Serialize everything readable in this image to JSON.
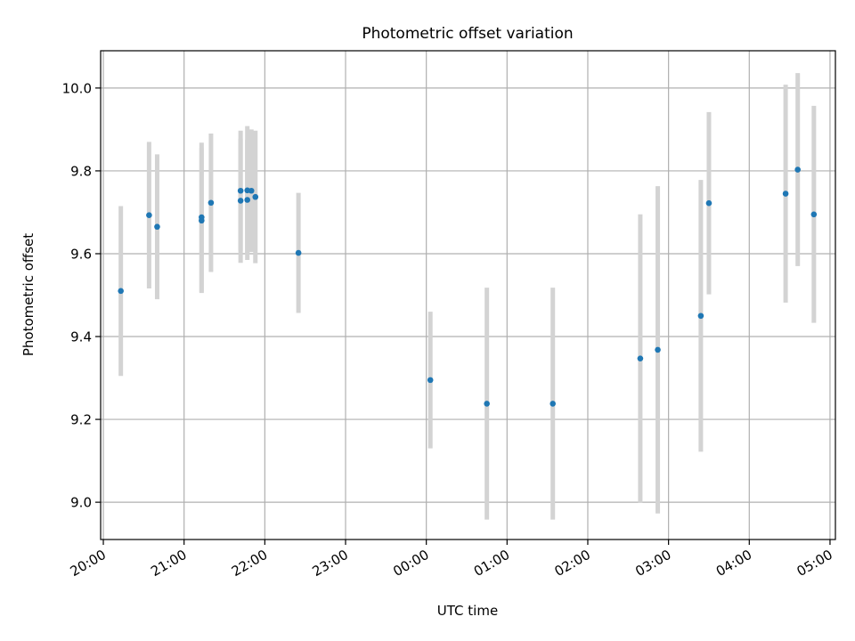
{
  "chart_data": {
    "type": "scatter",
    "title": "Photometric offset variation",
    "xlabel": "UTC time",
    "ylabel": "Photometric offset",
    "x_ticks": [
      "20:00",
      "21:00",
      "22:00",
      "23:00",
      "00:00",
      "01:00",
      "02:00",
      "03:00",
      "04:00",
      "05:00"
    ],
    "y_ticks": [
      "9.0",
      "9.2",
      "9.4",
      "9.6",
      "9.8",
      "10.0"
    ],
    "xlim": [
      "19:58",
      "05:04"
    ],
    "ylim": [
      8.91,
      10.09
    ],
    "grid": true,
    "colors": {
      "point": "#1f77b4",
      "errorbar": "#d3d3d3",
      "grid": "#b0b0b0"
    },
    "series": [
      {
        "points": [
          {
            "x": "20:13",
            "y": 9.51,
            "yerr": 0.205
          },
          {
            "x": "20:34",
            "y": 9.693,
            "yerr": 0.177
          },
          {
            "x": "20:40",
            "y": 9.665,
            "yerr": 0.175
          },
          {
            "x": "21:13",
            "y": 9.688,
            "yerr": 0.18
          },
          {
            "x": "21:13",
            "y": 9.68,
            "yerr": 0.175
          },
          {
            "x": "21:20",
            "y": 9.723,
            "yerr": 0.167
          },
          {
            "x": "21:42",
            "y": 9.752,
            "yerr": 0.145
          },
          {
            "x": "21:42",
            "y": 9.728,
            "yerr": 0.15
          },
          {
            "x": "21:47",
            "y": 9.753,
            "yerr": 0.155
          },
          {
            "x": "21:47",
            "y": 9.73,
            "yerr": 0.145
          },
          {
            "x": "21:50",
            "y": 9.752,
            "yerr": 0.148
          },
          {
            "x": "21:53",
            "y": 9.737,
            "yerr": 0.16
          },
          {
            "x": "22:25",
            "y": 9.602,
            "yerr": 0.145
          },
          {
            "x": "00:03",
            "y": 9.295,
            "yerr": 0.165
          },
          {
            "x": "00:45",
            "y": 9.238,
            "yerr": 0.28
          },
          {
            "x": "01:34",
            "y": 9.238,
            "yerr": 0.28
          },
          {
            "x": "02:39",
            "y": 9.347,
            "yerr": 0.348
          },
          {
            "x": "02:52",
            "y": 9.368,
            "yerr": 0.395
          },
          {
            "x": "03:24",
            "y": 9.45,
            "yerr": 0.328
          },
          {
            "x": "03:30",
            "y": 9.722,
            "yerr": 0.22
          },
          {
            "x": "04:27",
            "y": 9.745,
            "yerr": 0.263
          },
          {
            "x": "04:36",
            "y": 9.803,
            "yerr": 0.233
          },
          {
            "x": "04:48",
            "y": 9.695,
            "yerr": 0.262
          }
        ]
      }
    ]
  }
}
